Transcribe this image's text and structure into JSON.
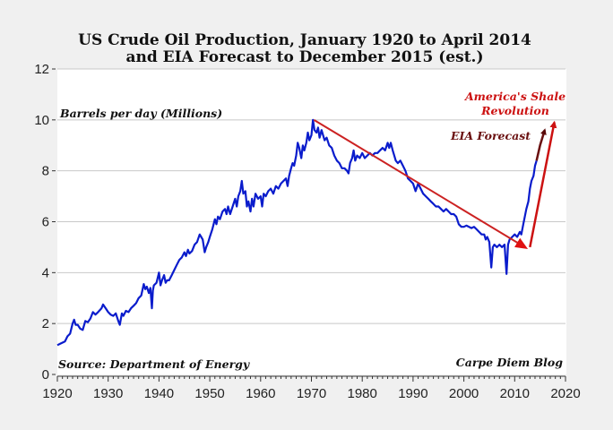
{
  "chart_data": {
    "type": "line",
    "title": "US Crude Oil Production, January 1920 to April 2014",
    "subtitle": "and EIA Forecast to December 2015 (est.)",
    "xlabel": "",
    "ylabel": "Barrels per day (Millions)",
    "xlim": [
      1920,
      2020
    ],
    "ylim": [
      0,
      12
    ],
    "x_ticks": [
      "1920",
      "1930",
      "1940",
      "1950",
      "1960",
      "1970",
      "1980",
      "1990",
      "2000",
      "2010",
      "2020"
    ],
    "y_ticks": [
      "0",
      "2",
      "4",
      "6",
      "8",
      "10",
      "12"
    ],
    "grid": true,
    "series": [
      {
        "name": "US Crude Oil Production",
        "color": "#0a1ccc",
        "points": [
          [
            1920,
            1.15
          ],
          [
            1920.5,
            1.2
          ],
          [
            1921,
            1.25
          ],
          [
            1921.5,
            1.3
          ],
          [
            1922,
            1.5
          ],
          [
            1922.5,
            1.6
          ],
          [
            1923,
            2.0
          ],
          [
            1923.3,
            2.15
          ],
          [
            1923.6,
            1.95
          ],
          [
            1924,
            1.95
          ],
          [
            1924.5,
            1.8
          ],
          [
            1925,
            1.75
          ],
          [
            1925.5,
            2.1
          ],
          [
            1926,
            2.05
          ],
          [
            1926.5,
            2.2
          ],
          [
            1927,
            2.45
          ],
          [
            1927.5,
            2.35
          ],
          [
            1928,
            2.45
          ],
          [
            1928.7,
            2.6
          ],
          [
            1929,
            2.75
          ],
          [
            1929.5,
            2.6
          ],
          [
            1930,
            2.45
          ],
          [
            1930.5,
            2.35
          ],
          [
            1931,
            2.3
          ],
          [
            1931.5,
            2.4
          ],
          [
            1932,
            2.1
          ],
          [
            1932.3,
            1.95
          ],
          [
            1932.7,
            2.4
          ],
          [
            1933,
            2.3
          ],
          [
            1933.5,
            2.5
          ],
          [
            1934,
            2.45
          ],
          [
            1934.5,
            2.6
          ],
          [
            1935,
            2.7
          ],
          [
            1935.5,
            2.8
          ],
          [
            1936,
            3.0
          ],
          [
            1936.5,
            3.1
          ],
          [
            1937,
            3.55
          ],
          [
            1937.3,
            3.35
          ],
          [
            1937.6,
            3.45
          ],
          [
            1938,
            3.2
          ],
          [
            1938.3,
            3.4
          ],
          [
            1938.6,
            2.6
          ],
          [
            1938.8,
            3.3
          ],
          [
            1939,
            3.5
          ],
          [
            1939.5,
            3.6
          ],
          [
            1940,
            4.0
          ],
          [
            1940.3,
            3.5
          ],
          [
            1940.6,
            3.7
          ],
          [
            1941,
            3.9
          ],
          [
            1941.3,
            3.6
          ],
          [
            1941.6,
            3.7
          ],
          [
            1942,
            3.7
          ],
          [
            1942.5,
            3.9
          ],
          [
            1943,
            4.1
          ],
          [
            1943.5,
            4.3
          ],
          [
            1944,
            4.5
          ],
          [
            1944.5,
            4.6
          ],
          [
            1945,
            4.8
          ],
          [
            1945.3,
            4.65
          ],
          [
            1945.7,
            4.9
          ],
          [
            1946,
            4.75
          ],
          [
            1946.5,
            4.85
          ],
          [
            1947,
            5.1
          ],
          [
            1947.5,
            5.2
          ],
          [
            1948,
            5.5
          ],
          [
            1948.3,
            5.4
          ],
          [
            1948.6,
            5.3
          ],
          [
            1949,
            4.8
          ],
          [
            1949.3,
            5.0
          ],
          [
            1949.7,
            5.2
          ],
          [
            1950,
            5.4
          ],
          [
            1950.5,
            5.7
          ],
          [
            1951,
            6.1
          ],
          [
            1951.3,
            5.9
          ],
          [
            1951.6,
            6.2
          ],
          [
            1952,
            6.1
          ],
          [
            1952.5,
            6.4
          ],
          [
            1953,
            6.5
          ],
          [
            1953.3,
            6.3
          ],
          [
            1953.6,
            6.6
          ],
          [
            1954,
            6.3
          ],
          [
            1954.5,
            6.6
          ],
          [
            1955,
            6.9
          ],
          [
            1955.3,
            6.6
          ],
          [
            1955.6,
            7.0
          ],
          [
            1956,
            7.2
          ],
          [
            1956.3,
            7.6
          ],
          [
            1956.6,
            7.1
          ],
          [
            1957,
            7.2
          ],
          [
            1957.3,
            6.6
          ],
          [
            1957.6,
            6.8
          ],
          [
            1958,
            6.4
          ],
          [
            1958.3,
            6.9
          ],
          [
            1958.6,
            6.6
          ],
          [
            1959,
            7.1
          ],
          [
            1959.5,
            6.9
          ],
          [
            1960,
            7.0
          ],
          [
            1960.3,
            6.6
          ],
          [
            1960.6,
            7.1
          ],
          [
            1961,
            7.0
          ],
          [
            1961.5,
            7.2
          ],
          [
            1962,
            7.3
          ],
          [
            1962.5,
            7.1
          ],
          [
            1963,
            7.4
          ],
          [
            1963.5,
            7.3
          ],
          [
            1964,
            7.5
          ],
          [
            1964.5,
            7.6
          ],
          [
            1965,
            7.7
          ],
          [
            1965.3,
            7.4
          ],
          [
            1965.6,
            7.8
          ],
          [
            1966,
            8.1
          ],
          [
            1966.3,
            8.3
          ],
          [
            1966.6,
            8.2
          ],
          [
            1967,
            8.6
          ],
          [
            1967.3,
            9.1
          ],
          [
            1967.6,
            8.9
          ],
          [
            1968,
            8.5
          ],
          [
            1968.3,
            9.0
          ],
          [
            1968.6,
            8.8
          ],
          [
            1969,
            9.1
          ],
          [
            1969.3,
            9.5
          ],
          [
            1969.6,
            9.2
          ],
          [
            1970,
            9.4
          ],
          [
            1970.3,
            10.0
          ],
          [
            1970.6,
            9.6
          ],
          [
            1971,
            9.5
          ],
          [
            1971.3,
            9.7
          ],
          [
            1971.6,
            9.3
          ],
          [
            1972,
            9.6
          ],
          [
            1972.3,
            9.4
          ],
          [
            1972.6,
            9.2
          ],
          [
            1973,
            9.3
          ],
          [
            1973.5,
            9.0
          ],
          [
            1974,
            8.9
          ],
          [
            1974.5,
            8.6
          ],
          [
            1975,
            8.4
          ],
          [
            1975.5,
            8.3
          ],
          [
            1976,
            8.1
          ],
          [
            1976.5,
            8.1
          ],
          [
            1977,
            8.0
          ],
          [
            1977.3,
            7.9
          ],
          [
            1977.6,
            8.3
          ],
          [
            1978,
            8.5
          ],
          [
            1978.3,
            8.8
          ],
          [
            1978.6,
            8.4
          ],
          [
            1979,
            8.6
          ],
          [
            1979.5,
            8.5
          ],
          [
            1980,
            8.7
          ],
          [
            1980.5,
            8.5
          ],
          [
            1981,
            8.6
          ],
          [
            1981.5,
            8.7
          ],
          [
            1982,
            8.6
          ],
          [
            1982.5,
            8.7
          ],
          [
            1983,
            8.7
          ],
          [
            1983.5,
            8.8
          ],
          [
            1984,
            8.9
          ],
          [
            1984.5,
            8.8
          ],
          [
            1985,
            9.1
          ],
          [
            1985.3,
            8.9
          ],
          [
            1985.6,
            9.1
          ],
          [
            1986,
            8.8
          ],
          [
            1986.3,
            8.6
          ],
          [
            1986.6,
            8.4
          ],
          [
            1987,
            8.3
          ],
          [
            1987.5,
            8.4
          ],
          [
            1988,
            8.2
          ],
          [
            1988.5,
            8.0
          ],
          [
            1989,
            7.7
          ],
          [
            1989.5,
            7.6
          ],
          [
            1990,
            7.5
          ],
          [
            1990.5,
            7.2
          ],
          [
            1991,
            7.5
          ],
          [
            1991.5,
            7.3
          ],
          [
            1992,
            7.1
          ],
          [
            1992.5,
            7.0
          ],
          [
            1993,
            6.9
          ],
          [
            1993.5,
            6.8
          ],
          [
            1994,
            6.7
          ],
          [
            1994.5,
            6.6
          ],
          [
            1995,
            6.6
          ],
          [
            1995.5,
            6.5
          ],
          [
            1996,
            6.4
          ],
          [
            1996.5,
            6.5
          ],
          [
            1997,
            6.4
          ],
          [
            1997.5,
            6.3
          ],
          [
            1998,
            6.3
          ],
          [
            1998.5,
            6.2
          ],
          [
            1999,
            5.9
          ],
          [
            1999.5,
            5.8
          ],
          [
            2000,
            5.8
          ],
          [
            2000.5,
            5.85
          ],
          [
            2001,
            5.8
          ],
          [
            2001.5,
            5.75
          ],
          [
            2002,
            5.8
          ],
          [
            2002.5,
            5.7
          ],
          [
            2003,
            5.6
          ],
          [
            2003.5,
            5.5
          ],
          [
            2004,
            5.5
          ],
          [
            2004.3,
            5.3
          ],
          [
            2004.6,
            5.4
          ],
          [
            2005,
            5.2
          ],
          [
            2005.4,
            4.2
          ],
          [
            2005.7,
            5.0
          ],
          [
            2006,
            5.1
          ],
          [
            2006.5,
            5.0
          ],
          [
            2007,
            5.1
          ],
          [
            2007.5,
            5.0
          ],
          [
            2008,
            5.1
          ],
          [
            2008.4,
            3.95
          ],
          [
            2008.7,
            5.1
          ],
          [
            2009,
            5.3
          ],
          [
            2009.5,
            5.4
          ],
          [
            2010,
            5.5
          ],
          [
            2010.5,
            5.4
          ],
          [
            2011,
            5.6
          ],
          [
            2011.3,
            5.5
          ],
          [
            2011.7,
            5.9
          ],
          [
            2012,
            6.2
          ],
          [
            2012.3,
            6.5
          ],
          [
            2012.7,
            6.8
          ],
          [
            2013,
            7.3
          ],
          [
            2013.3,
            7.6
          ],
          [
            2013.7,
            7.8
          ],
          [
            2014,
            8.2
          ],
          [
            2014.3,
            8.4
          ]
        ]
      },
      {
        "name": "EIA Forecast",
        "color": "#6a1010",
        "points": [
          [
            2014.3,
            8.4
          ],
          [
            2015,
            9.0
          ],
          [
            2015.9,
            9.6
          ]
        ]
      }
    ],
    "annotations": [
      {
        "text": "Barrels per day (Millions)",
        "position": "top-left"
      },
      {
        "text": "Source: Department of Energy",
        "position": "bottom-left"
      },
      {
        "text": "Carpe Diem Blog",
        "position": "bottom-right"
      },
      {
        "text": "America's Shale",
        "position": "top-right",
        "color": "#cc1111"
      },
      {
        "text": "Revolution",
        "position": "top-right",
        "color": "#cc1111"
      },
      {
        "text": "EIA Forecast",
        "position": "top-right",
        "color": "#6a1010"
      }
    ],
    "trend_arrows": [
      {
        "name": "decline-trend-arrow",
        "from": [
          1970.5,
          10.0
        ],
        "to": [
          2012,
          5.0
        ],
        "color": "#cc2222"
      },
      {
        "name": "shale-revolution-arrow",
        "from": [
          2013,
          5.0
        ],
        "to": [
          2017.8,
          9.9
        ],
        "color": "#cc1111"
      }
    ]
  }
}
